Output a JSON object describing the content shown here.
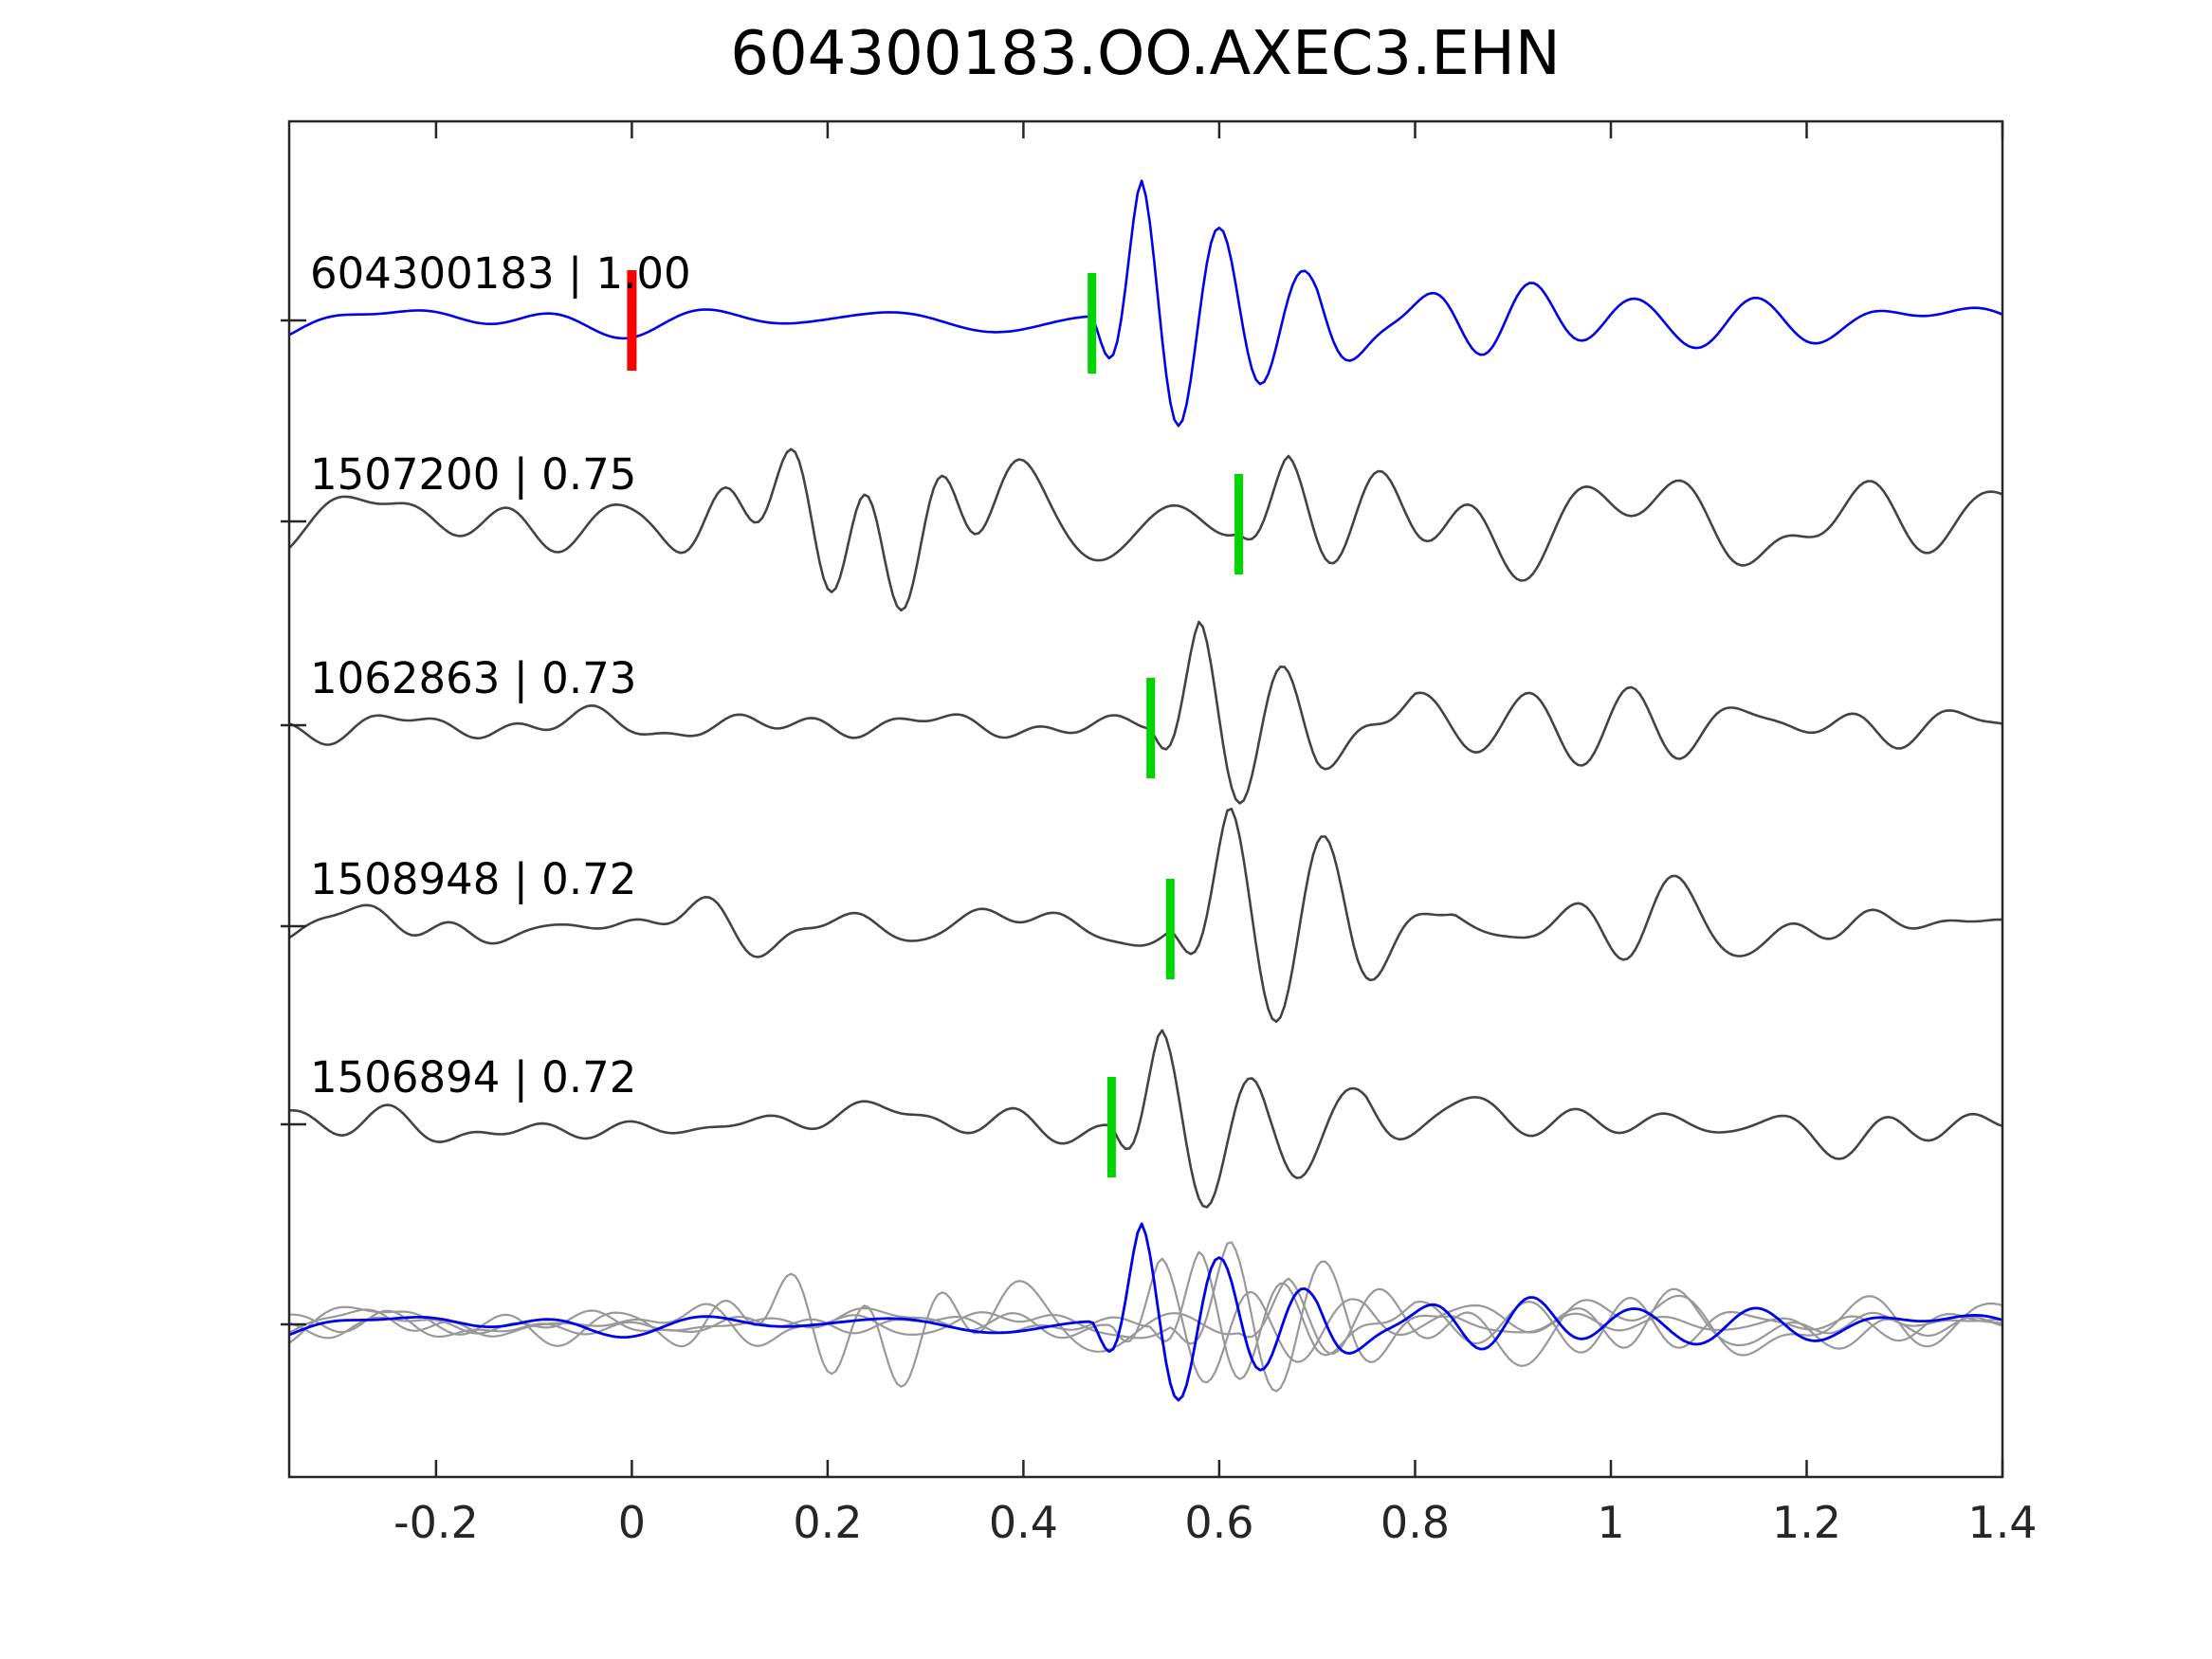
{
  "figure": {
    "title": "604300183.OO.AXEC3.EHN",
    "background": "#ffffff"
  },
  "chart_data": {
    "type": "line",
    "title": "604300183.OO.AXEC3.EHN",
    "xlabel": "",
    "ylabel": "",
    "xlim": [
      -0.35,
      1.4
    ],
    "x_ticks": [
      -0.2,
      0,
      0.2,
      0.4,
      0.6,
      0.8,
      1,
      1.2,
      1.4
    ],
    "x_tick_labels": [
      "-0.2",
      "0",
      "0.2",
      "0.4",
      "0.6",
      "0.8",
      "1",
      "1.2",
      "1.4"
    ],
    "grid": false,
    "legend_position": "none",
    "axes_color": "#262626",
    "tick_direction": "in",
    "rows": 6,
    "traces": [
      {
        "id": "604300183",
        "correlation": "1.00",
        "label": "604300183 | 1.00",
        "color": "#0000ee",
        "row": 0,
        "pick_time": 0.47,
        "pick_color": "#00d400",
        "origin_marker": {
          "time": 0.0,
          "color": "#ff0000"
        },
        "synth": {
          "seed": 101,
          "noise_amp": 15,
          "noise_fmax": 12,
          "bursts": [
            {
              "t0": 0.47,
              "amp": 150,
              "f": 12.5,
              "tau": 0.13,
              "ramp": 0.05
            },
            {
              "t0": 0.6,
              "amp": 55,
              "f": 9,
              "tau": 0.3,
              "ramp": 0.1
            }
          ]
        }
      },
      {
        "id": "1507200",
        "correlation": "0.75",
        "label": "1507200 | 0.75",
        "color": "#434343",
        "row": 1,
        "pick_time": 0.62,
        "pick_color": "#00d400",
        "synth": {
          "seed": 202,
          "noise_amp": 40,
          "noise_fmax": 17,
          "bursts": [
            {
              "t0": 0.62,
              "amp": 70,
              "f": 10,
              "tau": 0.22,
              "ramp": 0.05
            }
          ],
          "gauss": [
            {
              "t0": 0.22,
              "w": 0.13,
              "amp": 70,
              "f": 13
            }
          ]
        }
      },
      {
        "id": "1062863",
        "correlation": "0.73",
        "label": "1062863 | 0.73",
        "color": "#434343",
        "row": 2,
        "pick_time": 0.53,
        "pick_color": "#00d400",
        "synth": {
          "seed": 303,
          "noise_amp": 14,
          "noise_fmax": 13,
          "bursts": [
            {
              "t0": 0.53,
              "amp": 105,
              "f": 11.5,
              "tau": 0.16,
              "ramp": 0.05
            },
            {
              "t0": 0.7,
              "amp": 45,
              "f": 9,
              "tau": 0.35,
              "ramp": 0.1
            }
          ]
        }
      },
      {
        "id": "1508948",
        "correlation": "0.72",
        "label": "1508948 | 0.72",
        "color": "#434343",
        "row": 3,
        "pick_time": 0.55,
        "pick_color": "#00d400",
        "synth": {
          "seed": 404,
          "noise_amp": 22,
          "noise_fmax": 14,
          "bursts": [
            {
              "t0": 0.55,
              "amp": 120,
              "f": 10.5,
              "tau": 0.17,
              "ramp": 0.06
            },
            {
              "t0": 0.74,
              "amp": 50,
              "f": 9,
              "tau": 0.3,
              "ramp": 0.1
            }
          ]
        }
      },
      {
        "id": "1506894",
        "correlation": "0.72",
        "label": "1506894 | 0.72",
        "color": "#434343",
        "row": 4,
        "pick_time": 0.49,
        "pick_color": "#00d400",
        "synth": {
          "seed": 505,
          "noise_amp": 20,
          "noise_fmax": 13,
          "bursts": [
            {
              "t0": 0.49,
              "amp": 95,
              "f": 11,
              "tau": 0.15,
              "ramp": 0.05
            },
            {
              "t0": 0.65,
              "amp": 40,
              "f": 9.5,
              "tau": 0.3,
              "ramp": 0.1
            }
          ]
        }
      }
    ],
    "overlay_row": {
      "row": 5,
      "description": "all candidate traces overlaid (gray) with reference trace (blue)",
      "gray_color": "#999999",
      "gray_scale": 0.7,
      "highlight_id": "604300183",
      "highlight_color": "#0000ee",
      "highlight_scale": 0.72
    }
  }
}
